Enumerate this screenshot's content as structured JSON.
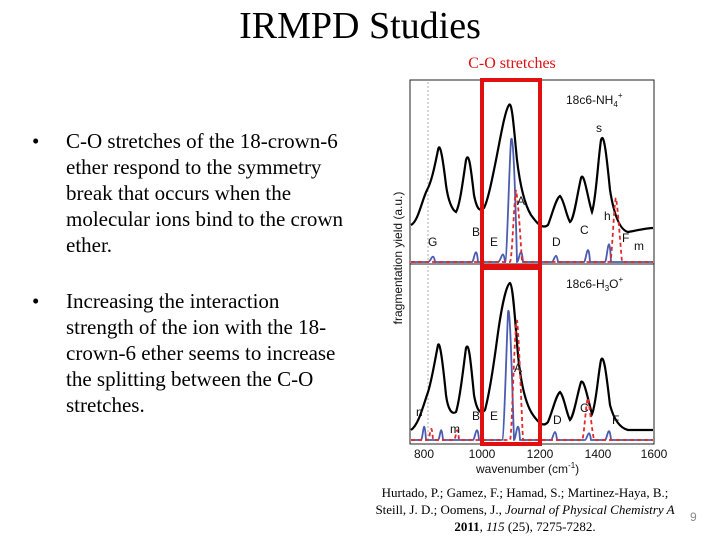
{
  "slide": {
    "title": "IRMPD Studies",
    "bullets": [
      "C-O stretches of the 18-crown-6 ether respond to the symmetry break that occurs when the molecular ions bind to the crown ether.",
      "Increasing the interaction strength of the ion with the 18-crown-6 ether seems to increase the splitting between the C-O stretches."
    ],
    "bullet_marker": "•",
    "page_number": "9"
  },
  "figure": {
    "highlight_label": "C-O stretches",
    "panel_labels": [
      "18c6-NH",
      "18c6-H"
    ],
    "ylabel": "fragmentation yield (a.u.)",
    "xlabel": "wavenumber (cm",
    "xticks": [
      "800",
      "1000",
      "1200",
      "1400",
      "1600"
    ],
    "top_peaks": [
      "s",
      "A",
      "h",
      "G",
      "B",
      "E",
      "D",
      "C",
      "F",
      "m"
    ],
    "bottom_peaks": [
      "A",
      "n",
      "B",
      "E",
      "m",
      "D",
      "C",
      "F"
    ],
    "colors": {
      "experiment": "#000000",
      "theory_solid": "#4a5bb0",
      "theory_dashed": "#e02a2a",
      "highlight": "#e01010"
    }
  },
  "citation": {
    "authors": "Hurtado, P.; Gamez, F.; Hamad, S.; Martinez-Haya, B.; Steill, J. D.; Oomens, J., ",
    "journal": "Journal of Physical Chemistry A",
    "year": " 2011",
    "volume": "115",
    "pages": " (25), 7275-7282."
  }
}
